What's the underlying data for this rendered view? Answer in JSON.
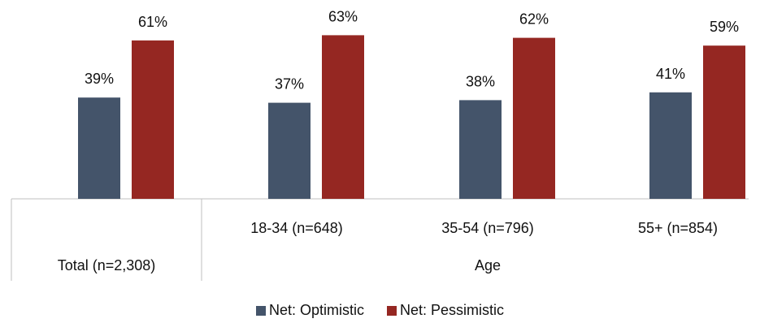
{
  "chart_data": {
    "type": "bar",
    "categories": [
      "Total (n=2,308)",
      "18-34 (n=648)",
      "35-54 (n=796)",
      "55+ (n=854)"
    ],
    "group_label": "Age",
    "series": [
      {
        "name": "Net: Optimistic",
        "values": [
          39,
          37,
          38,
          41
        ],
        "labels": [
          "39%",
          "37%",
          "38%",
          "41%"
        ],
        "color": "#44546A"
      },
      {
        "name": "Net: Pessimistic",
        "values": [
          61,
          63,
          62,
          59
        ],
        "labels": [
          "61%",
          "63%",
          "62%",
          "59%"
        ],
        "color": "#952722"
      }
    ],
    "ylim": [
      0,
      100
    ],
    "grid": false,
    "legend_position": "bottom"
  }
}
